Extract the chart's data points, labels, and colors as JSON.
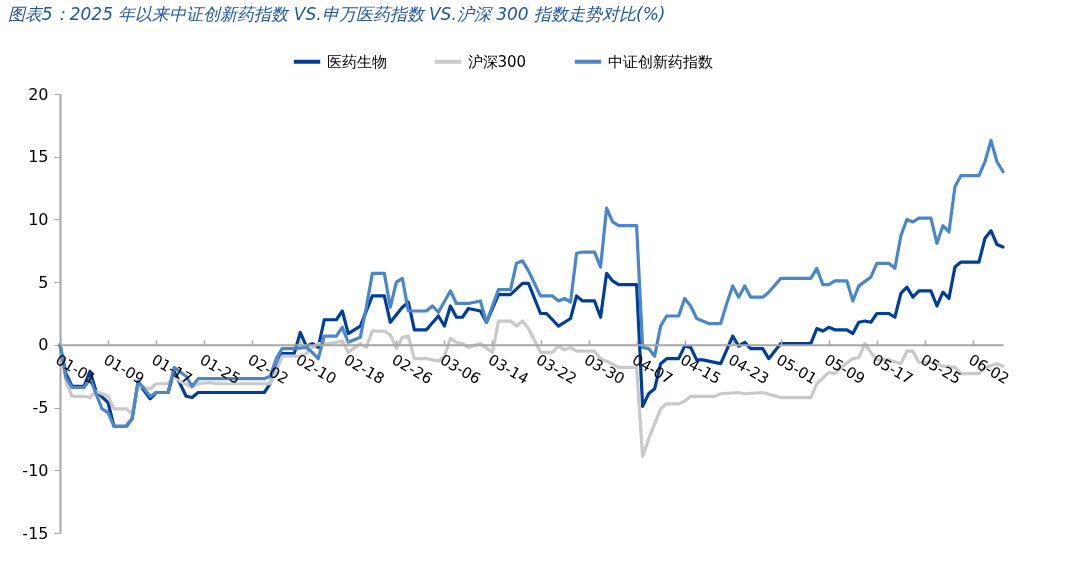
{
  "chart_data": {
    "type": "line",
    "title": "图表5：2025 年以来中证创新药指数 VS.申万医药指数 VS.沪深 300 指数走势对比(%)",
    "ylim": [
      -15,
      20
    ],
    "yticks": [
      -15,
      -10,
      -5,
      0,
      5,
      10,
      15,
      20
    ],
    "xlim": [
      "--01-01",
      "--06-07"
    ],
    "xticks": [
      {
        "value": "--01-01",
        "label": "01-01"
      },
      {
        "value": "--01-09",
        "label": "01-09"
      },
      {
        "value": "--01-17",
        "label": "01-17"
      },
      {
        "value": "--01-25",
        "label": "01-25"
      },
      {
        "value": "--02-02",
        "label": "02-02"
      },
      {
        "value": "--02-10",
        "label": "02-10"
      },
      {
        "value": "--02-18",
        "label": "02-18"
      },
      {
        "value": "--02-26",
        "label": "02-26"
      },
      {
        "value": "--03-06",
        "label": "03-06"
      },
      {
        "value": "--03-14",
        "label": "03-14"
      },
      {
        "value": "--03-22",
        "label": "03-22"
      },
      {
        "value": "--03-30",
        "label": "03-30"
      },
      {
        "value": "--04-07",
        "label": "04-07"
      },
      {
        "value": "--04-15",
        "label": "04-15"
      },
      {
        "value": "--04-23",
        "label": "04-23"
      },
      {
        "value": "--05-01",
        "label": "05-01"
      },
      {
        "value": "--05-09",
        "label": "05-09"
      },
      {
        "value": "--05-17",
        "label": "05-17"
      },
      {
        "value": "--05-25",
        "label": "05-25"
      },
      {
        "value": "--06-02",
        "label": "06-02"
      }
    ],
    "grid": false,
    "legend": "top",
    "marker": "none",
    "line_style": "solid",
    "series": [
      {
        "name": "医药生物",
        "color": "#003e98",
        "x": [
          "--01-01",
          "--01-02",
          "--01-03",
          "--01-05",
          "--01-06",
          "--01-07",
          "--01-09",
          "--01-10",
          "--01-12",
          "--01-13",
          "--01-14",
          "--01-16",
          "--01-17",
          "--01-19",
          "--01-20",
          "--01-22",
          "--01-23",
          "--01-24",
          "--02-04",
          "--02-05",
          "--02-07",
          "--02-09",
          "--02-10",
          "--02-11",
          "--02-12",
          "--02-13",
          "--02-14",
          "--02-16",
          "--02-17",
          "--02-18",
          "--02-20",
          "--02-22",
          "--02-24",
          "--02-25",
          "--02-27",
          "--02-28",
          "--03-01",
          "--03-03",
          "--03-05",
          "--03-06",
          "--03-07",
          "--03-08",
          "--03-09",
          "--03-10",
          "--03-12",
          "--03-13",
          "--03-15",
          "--03-17",
          "--03-19",
          "--03-20",
          "--03-22",
          "--03-23",
          "--03-25",
          "--03-27",
          "--03-28",
          "--03-29",
          "--03-31",
          "--04-01",
          "--04-02",
          "--04-03",
          "--04-04",
          "--04-07",
          "--04-08",
          "--04-09",
          "--04-10",
          "--04-11",
          "--04-12",
          "--04-14",
          "--04-15",
          "--04-16",
          "--04-17",
          "--04-18",
          "--04-21",
          "--04-23",
          "--04-24",
          "--04-25",
          "--04-26",
          "--04-28",
          "--04-29",
          "--05-01",
          "--05-06",
          "--05-07",
          "--05-08",
          "--05-09",
          "--05-10",
          "--05-12",
          "--05-13",
          "--05-14",
          "--05-15",
          "--05-16",
          "--05-17",
          "--05-19",
          "--05-20",
          "--05-21",
          "--05-22",
          "--05-23",
          "--05-24",
          "--05-26",
          "--05-27",
          "--05-28",
          "--05-29",
          "--05-30",
          "--05-31",
          "--06-03",
          "--06-04",
          "--06-05",
          "--06-06",
          "--06-07"
        ],
        "values": [
          0,
          -2.3,
          -3.3,
          -3.3,
          -2.1,
          -3.7,
          -4.6,
          -6.5,
          -6.5,
          -5.9,
          -3.0,
          -4.3,
          -3.8,
          -3.8,
          -2.1,
          -4.1,
          -4.2,
          -3.8,
          -3.8,
          -3.1,
          -0.7,
          -0.7,
          1.0,
          -0.1,
          0.1,
          -0.2,
          2.0,
          2.0,
          2.7,
          0.9,
          1.5,
          3.9,
          3.9,
          1.8,
          3.0,
          3.4,
          1.2,
          1.2,
          2.3,
          1.5,
          3.1,
          2.2,
          2.2,
          2.9,
          2.7,
          1.8,
          4.0,
          4.0,
          4.9,
          4.9,
          2.5,
          2.5,
          1.5,
          2.1,
          3.9,
          3.5,
          3.5,
          2.2,
          5.7,
          5.1,
          4.8,
          4.8,
          -4.9,
          -3.9,
          -3.5,
          -1.5,
          -1.1,
          -1.1,
          -0.1,
          -0.2,
          -1.2,
          -1.2,
          -1.5,
          0.7,
          -0.1,
          0.2,
          -0.3,
          -0.3,
          -1.1,
          0.1,
          0.1,
          1.3,
          1.1,
          1.4,
          1.2,
          1.2,
          0.9,
          1.8,
          1.9,
          1.8,
          2.5,
          2.5,
          2.2,
          4.1,
          4.6,
          3.8,
          4.3,
          4.3,
          3.1,
          4.2,
          3.7,
          6.2,
          6.6,
          6.6,
          8.5,
          9.1,
          8.0,
          7.8
        ]
      },
      {
        "name": "沪深300",
        "color": "#c9c9c9",
        "x": [
          "--01-01",
          "--01-02",
          "--01-03",
          "--01-05",
          "--01-06",
          "--01-07",
          "--01-09",
          "--01-10",
          "--01-12",
          "--01-13",
          "--01-14",
          "--01-16",
          "--01-17",
          "--01-19",
          "--01-20",
          "--01-21",
          "--01-23",
          "--01-24",
          "--01-26",
          "--01-27",
          "--02-05",
          "--02-06",
          "--02-07",
          "--02-10",
          "--02-11",
          "--02-12",
          "--02-13",
          "--02-15",
          "--02-17",
          "--02-18",
          "--02-20",
          "--02-21",
          "--02-22",
          "--02-24",
          "--02-25",
          "--02-26",
          "--02-27",
          "--02-28",
          "--03-01",
          "--03-03",
          "--03-05",
          "--03-06",
          "--03-07",
          "--03-08",
          "--03-09",
          "--03-10",
          "--03-12",
          "--03-14",
          "--03-15",
          "--03-17",
          "--03-18",
          "--03-19",
          "--03-20",
          "--03-22",
          "--03-24",
          "--03-25",
          "--03-26",
          "--03-27",
          "--03-28",
          "--03-31",
          "--04-01",
          "--04-02",
          "--04-04",
          "--04-07",
          "--04-08",
          "--04-09",
          "--04-10",
          "--04-11",
          "--04-12",
          "--04-14",
          "--04-15",
          "--04-16",
          "--04-20",
          "--04-21",
          "--04-24",
          "--04-25",
          "--04-28",
          "--05-01",
          "--05-06",
          "--05-07",
          "--05-09",
          "--05-10",
          "--05-11",
          "--05-13",
          "--05-14",
          "--05-15",
          "--05-16",
          "--05-17",
          "--05-19",
          "--05-21",
          "--05-22",
          "--05-23",
          "--05-24",
          "--05-26",
          "--05-28",
          "--05-30",
          "--05-31",
          "--06-03",
          "--06-04",
          "--06-06",
          "--06-07"
        ],
        "values": [
          0,
          -2.9,
          -4.1,
          -4.1,
          -4.2,
          -3.7,
          -4.1,
          -5.1,
          -5.1,
          -5.5,
          -3.3,
          -3.5,
          -3.1,
          -3.1,
          -2.5,
          -2.9,
          -3.4,
          -3.1,
          -3.0,
          -3.1,
          -3.1,
          -2.1,
          -0.9,
          -0.9,
          -0.7,
          -0.2,
          0.1,
          0.1,
          0.3,
          -0.6,
          0.1,
          -0.2,
          1.1,
          1.1,
          0.8,
          -0.3,
          0.6,
          0.7,
          -1.1,
          -1.1,
          -1.3,
          -0.9,
          0.5,
          0.2,
          0.1,
          -0.2,
          0.1,
          -0.6,
          1.9,
          1.9,
          1.5,
          1.9,
          1.3,
          -0.6,
          -0.6,
          -0.1,
          -0.4,
          -0.2,
          -0.5,
          -0.5,
          -1.1,
          -1.3,
          -1.8,
          -1.8,
          -8.9,
          -7.5,
          -6.3,
          -5.1,
          -4.7,
          -4.7,
          -4.5,
          -4.1,
          -4.1,
          -3.9,
          -3.8,
          -3.9,
          -3.8,
          -4.2,
          -4.2,
          -3.1,
          -2.2,
          -2.3,
          -1.8,
          -1.1,
          -1.0,
          0.1,
          -0.6,
          -1.2,
          -1.2,
          -1.5,
          -0.5,
          -0.5,
          -1.4,
          -1.4,
          -1.7,
          -1.8,
          -2.3,
          -2.3,
          -1.8,
          -1.5,
          -1.7
        ]
      },
      {
        "name": "中证创新药指数",
        "color": "#4a86c8",
        "x": [
          "--01-01",
          "--01-02",
          "--01-03",
          "--01-05",
          "--01-06",
          "--01-07",
          "--01-08",
          "--01-09",
          "--01-10",
          "--01-12",
          "--01-13",
          "--01-14",
          "--01-16",
          "--01-17",
          "--01-19",
          "--01-20",
          "--01-22",
          "--01-23",
          "--01-24",
          "--02-04",
          "--02-05",
          "--02-06",
          "--02-07",
          "--02-09",
          "--02-11",
          "--02-12",
          "--02-13",
          "--02-14",
          "--02-16",
          "--02-17",
          "--02-18",
          "--02-20",
          "--02-21",
          "--02-22",
          "--02-24",
          "--02-25",
          "--02-26",
          "--02-27",
          "--02-28",
          "--03-03",
          "--03-04",
          "--03-05",
          "--03-07",
          "--03-08",
          "--03-10",
          "--03-12",
          "--03-13",
          "--03-15",
          "--03-17",
          "--03-18",
          "--03-19",
          "--03-20",
          "--03-22",
          "--03-24",
          "--03-25",
          "--03-26",
          "--03-27",
          "--03-28",
          "--03-29",
          "--03-31",
          "--04-01",
          "--04-02",
          "--04-03",
          "--04-04",
          "--04-07",
          "--04-08",
          "--04-09",
          "--04-10",
          "--04-11",
          "--04-12",
          "--04-14",
          "--04-15",
          "--04-16",
          "--04-17",
          "--04-19",
          "--04-21",
          "--04-22",
          "--04-23",
          "--04-24",
          "--04-25",
          "--04-26",
          "--04-28",
          "--04-29",
          "--05-01",
          "--05-06",
          "--05-07",
          "--05-08",
          "--05-09",
          "--05-10",
          "--05-12",
          "--05-13",
          "--05-14",
          "--05-16",
          "--05-17",
          "--05-19",
          "--05-20",
          "--05-21",
          "--05-22",
          "--05-23",
          "--05-24",
          "--05-26",
          "--05-27",
          "--05-28",
          "--05-29",
          "--05-30",
          "--05-31",
          "--06-03",
          "--06-04",
          "--06-05",
          "--06-06",
          "--06-07"
        ],
        "values": [
          0,
          -2.6,
          -3.4,
          -3.4,
          -2.7,
          -3.9,
          -5.1,
          -5.4,
          -6.5,
          -6.5,
          -5.9,
          -2.9,
          -4.1,
          -3.8,
          -3.8,
          -1.8,
          -2.5,
          -3.3,
          -2.7,
          -2.7,
          -2.5,
          -1.1,
          -0.3,
          -0.3,
          -0.2,
          -0.6,
          -1.1,
          0.7,
          0.7,
          1.4,
          0.2,
          0.6,
          3.0,
          5.7,
          5.7,
          3.0,
          5.0,
          5.3,
          2.7,
          2.7,
          3.1,
          2.6,
          4.3,
          3.3,
          3.3,
          3.5,
          1.8,
          4.4,
          4.4,
          6.5,
          6.7,
          5.9,
          3.9,
          3.9,
          3.5,
          3.7,
          3.4,
          7.3,
          7.4,
          7.4,
          6.2,
          10.9,
          9.8,
          9.5,
          9.5,
          -0.2,
          -0.3,
          -0.9,
          1.5,
          2.3,
          2.3,
          3.7,
          3.1,
          2.1,
          1.7,
          1.7,
          3.3,
          4.7,
          3.8,
          4.7,
          3.8,
          3.8,
          4.2,
          5.3,
          5.3,
          6.1,
          4.8,
          4.8,
          5.1,
          5.1,
          3.5,
          4.7,
          5.4,
          6.5,
          6.5,
          6.1,
          8.7,
          10.0,
          9.8,
          10.1,
          10.1,
          8.1,
          9.5,
          9.0,
          12.6,
          13.5,
          13.5,
          14.6,
          16.3,
          14.6,
          13.8
        ]
      }
    ]
  }
}
